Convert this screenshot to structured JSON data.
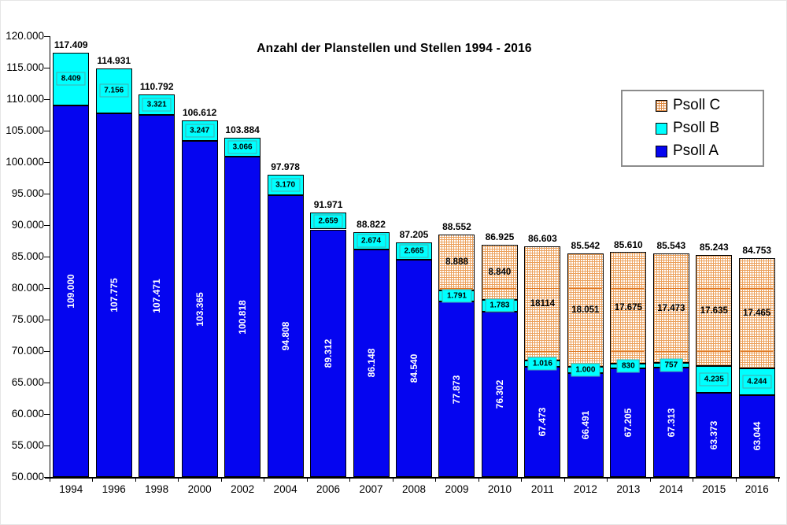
{
  "title": "Anzahl der Planstellen und Stellen 1994 - 2016",
  "legend": {
    "items": [
      {
        "label": "Psoll C",
        "swatch": "pattern-orange-crosshatch"
      },
      {
        "label": "Psoll B",
        "swatch": "cyan"
      },
      {
        "label": "Psoll A",
        "swatch": "blue"
      }
    ]
  },
  "colors": {
    "psoll_a": "#0505f0",
    "psoll_b": "#00ffff",
    "psoll_c_pattern": "#eca15c",
    "psoll_c_background": "#ffffff",
    "axis": "#000000",
    "bar_border": "#000000"
  },
  "chart_data": {
    "type": "bar",
    "stacked": true,
    "title": "Anzahl der Planstellen und Stellen 1994 - 2016",
    "xlabel": "",
    "ylabel": "",
    "ylim": [
      50000,
      120000
    ],
    "ytick_step": 5000,
    "grid": false,
    "legend_position": "top-right",
    "categories": [
      "1994",
      "1996",
      "1998",
      "2000",
      "2002",
      "2004",
      "2006",
      "2007",
      "2008",
      "2009",
      "2010",
      "2011",
      "2012",
      "2013",
      "2014",
      "2015",
      "2016"
    ],
    "ytick_labels": [
      "120.000",
      "115.000",
      "110.000",
      "105.000",
      "100.000",
      "95.000",
      "90.000",
      "85.000",
      "80.000",
      "75.000",
      "70.000",
      "65.000",
      "60.000",
      "55.000",
      "50.000"
    ],
    "series": [
      {
        "name": "Psoll A",
        "values": [
          109000,
          107775,
          107471,
          103365,
          100818,
          94808,
          89312,
          86148,
          84540,
          77873,
          76302,
          67473,
          66491,
          67205,
          67313,
          63373,
          63044
        ],
        "labels": [
          "109.000",
          "107.775",
          "107.471",
          "103.365",
          "100.818",
          "94.808",
          "89.312",
          "86.148",
          "84.540",
          "77.873",
          "76.302",
          "67.473",
          "66.491",
          "67.205",
          "67.313",
          "63.373",
          "63.044"
        ]
      },
      {
        "name": "Psoll B",
        "values": [
          8409,
          7156,
          3321,
          3247,
          3066,
          3170,
          2659,
          2674,
          2665,
          1791,
          1783,
          1016,
          1000,
          830,
          757,
          4235,
          4244
        ],
        "labels": [
          "8.409",
          "7.156",
          "3.321",
          "3.247",
          "3.066",
          "3.170",
          "2.659",
          "2.674",
          "2.665",
          "1.791",
          "1.783",
          "1.016",
          "1.000",
          "830",
          "757",
          "4.235",
          "4.244"
        ]
      },
      {
        "name": "Psoll C",
        "values": [
          0,
          0,
          0,
          0,
          0,
          0,
          0,
          0,
          0,
          8888,
          8840,
          18114,
          18051,
          17675,
          17473,
          17635,
          17465
        ],
        "labels": [
          "",
          "",
          "",
          "",
          "",
          "",
          "",
          "",
          "",
          "8.888",
          "8.840",
          "18114",
          "18.051",
          "17.675",
          "17.473",
          "17.635",
          "17.465"
        ]
      }
    ],
    "totals": [
      117409,
      114931,
      110792,
      106612,
      103884,
      97978,
      91971,
      88822,
      87205,
      88552,
      86925,
      86603,
      85542,
      85610,
      85543,
      85243,
      84753
    ],
    "total_labels": [
      "117.409",
      "114.931",
      "110.792",
      "106.612",
      "103.884",
      "97.978",
      "91.971",
      "88.822",
      "87.205",
      "88.552",
      "86.925",
      "86.603",
      "85.542",
      "85.610",
      "85.543",
      "85.243",
      "84.753"
    ]
  }
}
